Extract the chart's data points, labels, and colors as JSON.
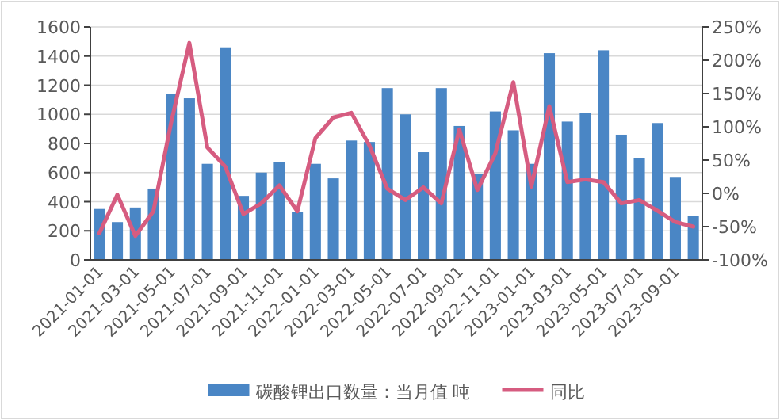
{
  "chart_data": {
    "type": "bar",
    "categories": [
      "2021-01-01",
      null,
      "2021-03-01",
      null,
      "2021-05-01",
      null,
      "2021-07-01",
      null,
      "2021-09-01",
      null,
      "2021-11-01",
      null,
      "2022-01-01",
      null,
      "2022-03-01",
      null,
      "2022-05-01",
      null,
      "2022-07-01",
      null,
      "2022-09-01",
      null,
      "2022-11-01",
      null,
      "2023-01-01",
      null,
      "2023-03-01",
      null,
      "2023-05-01",
      null,
      "2023-07-01",
      null,
      "2023-09-01",
      null
    ],
    "series": [
      {
        "name": "碳酸锂出口数量：当月值 吨",
        "color": "#4a86c5",
        "values": [
          350,
          260,
          360,
          490,
          1140,
          1110,
          660,
          1460,
          440,
          600,
          670,
          330,
          660,
          560,
          820,
          810,
          1180,
          1000,
          740,
          1180,
          920,
          590,
          1020,
          890,
          660,
          1420,
          950,
          1010,
          1440,
          860,
          700,
          940,
          570,
          300
        ]
      },
      {
        "name": "同比",
        "type": "line",
        "axis": "y2",
        "color": "#d65c80",
        "values": [
          -60,
          -2,
          -64,
          -27,
          108,
          226,
          69,
          40,
          -31,
          -15,
          12,
          -27,
          83,
          114,
          121,
          72,
          7,
          -10,
          9,
          -15,
          96,
          5,
          60,
          167,
          10,
          131,
          17,
          21,
          17,
          -15,
          -10,
          -26,
          -43,
          -50
        ]
      }
    ],
    "ylim": [
      0,
      1600
    ],
    "yticks": [
      0,
      200,
      400,
      600,
      800,
      1000,
      1200,
      1400,
      1600
    ],
    "y2lim": [
      -100,
      250
    ],
    "y2ticks": [
      {
        "value": -100,
        "label": "-100%"
      },
      {
        "value": -50,
        "label": "-50%"
      },
      {
        "value": 0,
        "label": "0%"
      },
      {
        "value": 50,
        "label": "50%"
      },
      {
        "value": 100,
        "label": "100%"
      },
      {
        "value": 150,
        "label": "150%"
      },
      {
        "value": 200,
        "label": "200%"
      },
      {
        "value": 250,
        "label": "250%"
      }
    ],
    "grid": "y",
    "legend": "bottom"
  }
}
